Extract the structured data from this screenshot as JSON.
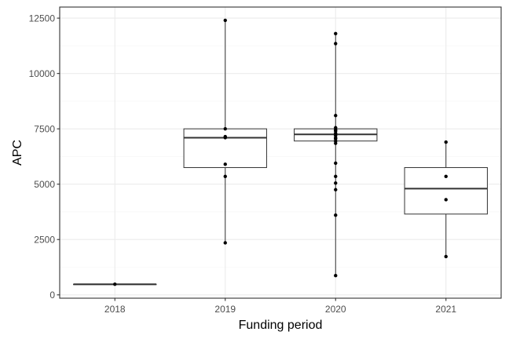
{
  "chart_data": {
    "type": "boxplot",
    "title": "",
    "xlabel": "Funding period",
    "ylabel": "APC",
    "ylim": [
      -150,
      13000
    ],
    "y_ticks": [
      0,
      2500,
      5000,
      7500,
      10000,
      12500
    ],
    "y_tick_labels": [
      "0",
      "2500",
      "5000",
      "7500",
      "10000",
      "12500"
    ],
    "categories": [
      "2018",
      "2019",
      "2020",
      "2021"
    ],
    "grid": true,
    "theme": "bw",
    "boxes": [
      {
        "category": "2018",
        "min": 480,
        "q1": 480,
        "median": 480,
        "q3": 480,
        "max": 480
      },
      {
        "category": "2019",
        "min": 2350,
        "q1": 5750,
        "median": 7100,
        "q3": 7500,
        "max": 12400
      },
      {
        "category": "2020",
        "min": 870,
        "q1": 6950,
        "median": 7250,
        "q3": 7500,
        "max": 11800
      },
      {
        "category": "2021",
        "min": 1730,
        "q1": 3650,
        "median": 4800,
        "q3": 5750,
        "max": 6900
      }
    ],
    "points": [
      {
        "category": "2018",
        "values": [
          480
        ]
      },
      {
        "category": "2019",
        "values": [
          12400,
          7500,
          7150,
          7100,
          5900,
          5350,
          2350
        ]
      },
      {
        "category": "2020",
        "values": [
          11800,
          11350,
          8100,
          7550,
          7450,
          7400,
          7300,
          7200,
          7100,
          7050,
          6950,
          6850,
          5950,
          5350,
          5050,
          4750,
          3600,
          870
        ]
      },
      {
        "category": "2021",
        "values": [
          6900,
          5350,
          4300,
          1730
        ]
      }
    ],
    "colors": {
      "panel_border": "#333333",
      "grid_major": "#ebebeb",
      "grid_minor": "#f5f5f5",
      "box_line": "#333333",
      "point": "#000000",
      "tick_text": "#4d4d4d"
    }
  }
}
